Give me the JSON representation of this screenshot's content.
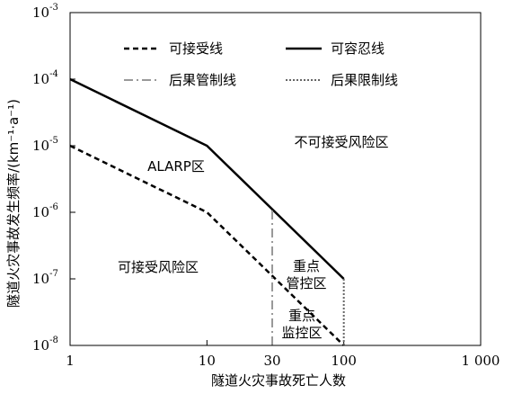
{
  "chart_data": {
    "type": "line",
    "xlabel": "隧道火灾事故死亡人数",
    "ylabel": "隧道火灾事故发生频率/(km⁻¹·a⁻¹)",
    "x_scale": "log",
    "y_scale": "log",
    "xlim": [
      1,
      1000
    ],
    "ylim": [
      1e-08,
      0.001
    ],
    "x_ticks": [
      1,
      10,
      30,
      100,
      1000
    ],
    "x_tick_labels": [
      "1",
      "10",
      "30",
      "100",
      "1 000"
    ],
    "y_ticks": [
      1e-08,
      1e-07,
      1e-06,
      1e-05,
      0.0001,
      0.001
    ],
    "y_tick_labels": [
      {
        "base": "10",
        "exp": "-8"
      },
      {
        "base": "10",
        "exp": "-7"
      },
      {
        "base": "10",
        "exp": "-6"
      },
      {
        "base": "10",
        "exp": "-5"
      },
      {
        "base": "10",
        "exp": "-4"
      },
      {
        "base": "10",
        "exp": "-3"
      }
    ],
    "series": [
      {
        "name": "可接受线",
        "style": "dashed",
        "color": "#000000",
        "x": [
          1,
          10,
          100
        ],
        "y": [
          1e-05,
          1e-06,
          1e-08
        ]
      },
      {
        "name": "可容忍线",
        "style": "solid",
        "color": "#000000",
        "x": [
          1,
          10,
          100
        ],
        "y": [
          0.0001,
          1e-05,
          1e-07
        ]
      },
      {
        "name": "后果管制线",
        "style": "dashdot",
        "color": "#999999",
        "x": [
          30,
          30
        ],
        "y": [
          1e-08,
          1.1e-06
        ]
      },
      {
        "name": "后果限制线",
        "style": "dotted",
        "color": "#666666",
        "x": [
          100,
          100
        ],
        "y": [
          1e-08,
          1e-07
        ]
      }
    ],
    "legend_position": "top",
    "regions": [
      {
        "label": "不可接受风险区"
      },
      {
        "label": "ALARP区"
      },
      {
        "label": "可接受风险区"
      },
      {
        "label": "重点",
        "label2": "管控区"
      },
      {
        "label": "重点",
        "label2": "监控区"
      }
    ]
  }
}
